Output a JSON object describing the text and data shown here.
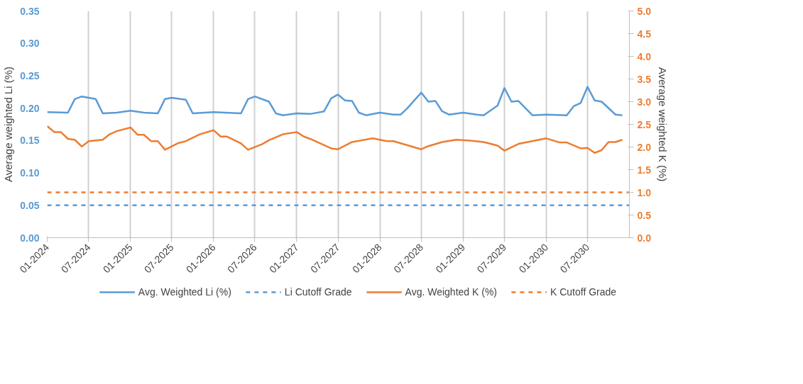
{
  "chart_data": {
    "type": "line",
    "ylabel": "Average weighted Li (%)",
    "y2label": "Average weighted K (%)",
    "xlim": [
      "2024-01",
      "2031-01"
    ],
    "xticks": [
      {
        "value": "2024-01",
        "label": "01-2024"
      },
      {
        "value": "2024-07",
        "label": "07-2024"
      },
      {
        "value": "2025-01",
        "label": "01-2025"
      },
      {
        "value": "2025-07",
        "label": "07-2025"
      },
      {
        "value": "2026-01",
        "label": "01-2026"
      },
      {
        "value": "2026-07",
        "label": "07-2026"
      },
      {
        "value": "2027-01",
        "label": "01-2027"
      },
      {
        "value": "2027-07",
        "label": "07-2027"
      },
      {
        "value": "2028-01",
        "label": "01-2028"
      },
      {
        "value": "2028-07",
        "label": "07-2028"
      },
      {
        "value": "2029-01",
        "label": "01-2029"
      },
      {
        "value": "2029-07",
        "label": "07-2029"
      },
      {
        "value": "2030-01",
        "label": "01-2030"
      },
      {
        "value": "2030-07",
        "label": "07-2030"
      }
    ],
    "ylim": [
      0,
      0.35
    ],
    "yticks": [
      {
        "value": 0,
        "label": "0.00"
      },
      {
        "value": 0.05,
        "label": "0.05"
      },
      {
        "value": 0.1,
        "label": "0.10"
      },
      {
        "value": 0.15,
        "label": "0.15"
      },
      {
        "value": 0.2,
        "label": "0.20"
      },
      {
        "value": 0.25,
        "label": "0.25"
      },
      {
        "value": 0.3,
        "label": "0.30"
      },
      {
        "value": 0.35,
        "label": "0.35"
      }
    ],
    "y2lim": [
      0,
      5
    ],
    "y2ticks": [
      {
        "value": 0,
        "label": "0.0"
      },
      {
        "value": 0.5,
        "label": "0.5"
      },
      {
        "value": 1,
        "label": "1.0"
      },
      {
        "value": 1.5,
        "label": "1.5"
      },
      {
        "value": 2,
        "label": "2.0"
      },
      {
        "value": 2.5,
        "label": "2.5"
      },
      {
        "value": 3,
        "label": "3.0"
      },
      {
        "value": 3.5,
        "label": "3.5"
      },
      {
        "value": 4,
        "label": "4.0"
      },
      {
        "value": 4.5,
        "label": "4.5"
      },
      {
        "value": 5,
        "label": "5.0"
      }
    ],
    "grid": "x",
    "legend": "bottom",
    "line_style": "solid",
    "series": [
      {
        "name": "Avg. Weighted Li (%)",
        "color": "#5b9bd5",
        "x": [
          "2024-01",
          "2024-04",
          "2024-05",
          "2024-06",
          "2024-08",
          "2024-09",
          "2024-11",
          "2025-01",
          "2025-03",
          "2025-05",
          "2025-06",
          "2025-07",
          "2025-09",
          "2025-10",
          "2026-01",
          "2026-05",
          "2026-06",
          "2026-07",
          "2026-09",
          "2026-10",
          "2026-11",
          "2027-01",
          "2027-03",
          "2027-05",
          "2027-06",
          "2027-07",
          "2027-08",
          "2027-09",
          "2027-10",
          "2027-11",
          "2028-01",
          "2028-03",
          "2028-04",
          "2028-05",
          "2028-07",
          "2028-08",
          "2028-09",
          "2028-10",
          "2028-11",
          "2029-01",
          "2029-03",
          "2029-04",
          "2029-06",
          "2029-07",
          "2029-08",
          "2029-09",
          "2029-11",
          "2030-01",
          "2030-04",
          "2030-05",
          "2030-06",
          "2030-07",
          "2030-08",
          "2030-09",
          "2030-11",
          "2030-12"
        ],
        "values": [
          0.194,
          0.193,
          0.214,
          0.218,
          0.214,
          0.192,
          0.193,
          0.196,
          0.193,
          0.192,
          0.214,
          0.216,
          0.213,
          0.192,
          0.194,
          0.192,
          0.214,
          0.218,
          0.21,
          0.192,
          0.189,
          0.192,
          0.191,
          0.195,
          0.215,
          0.221,
          0.212,
          0.211,
          0.193,
          0.189,
          0.193,
          0.19,
          0.19,
          0.2,
          0.224,
          0.21,
          0.211,
          0.195,
          0.19,
          0.193,
          0.19,
          0.189,
          0.204,
          0.231,
          0.21,
          0.211,
          0.189,
          0.19,
          0.189,
          0.203,
          0.208,
          0.233,
          0.212,
          0.21,
          0.19,
          0.189
        ]
      },
      {
        "name": "Avg. Weighted K (%)",
        "color": "#ed7d31",
        "axis": "y2",
        "x": [
          "2024-01",
          "2024-02",
          "2024-03",
          "2024-04",
          "2024-05",
          "2024-06",
          "2024-07",
          "2024-09",
          "2024-10",
          "2024-11",
          "2025-01",
          "2025-02",
          "2025-03",
          "2025-04",
          "2025-05",
          "2025-06",
          "2025-08",
          "2025-09",
          "2025-11",
          "2026-01",
          "2026-02",
          "2026-03",
          "2026-05",
          "2026-06",
          "2026-08",
          "2026-09",
          "2026-11",
          "2027-01",
          "2027-02",
          "2027-03",
          "2027-06",
          "2027-07",
          "2027-09",
          "2027-12",
          "2028-02",
          "2028-03",
          "2028-07",
          "2028-08",
          "2028-10",
          "2028-12",
          "2029-02",
          "2029-04",
          "2029-06",
          "2029-07",
          "2029-09",
          "2029-12",
          "2030-01",
          "2030-03",
          "2030-04",
          "2030-06",
          "2030-07",
          "2030-08",
          "2030-09",
          "2030-10",
          "2030-11",
          "2030-12"
        ],
        "values": [
          2.46,
          2.33,
          2.33,
          2.18,
          2.16,
          2.01,
          2.13,
          2.16,
          2.28,
          2.35,
          2.43,
          2.27,
          2.27,
          2.13,
          2.13,
          1.94,
          2.09,
          2.13,
          2.28,
          2.37,
          2.23,
          2.23,
          2.08,
          1.94,
          2.06,
          2.15,
          2.28,
          2.33,
          2.23,
          2.18,
          1.97,
          1.95,
          2.11,
          2.19,
          2.13,
          2.13,
          1.95,
          2.02,
          2.11,
          2.16,
          2.14,
          2.11,
          2.03,
          1.92,
          2.07,
          2.16,
          2.19,
          2.1,
          2.1,
          1.97,
          1.98,
          1.87,
          1.93,
          2.11,
          2.11,
          2.16
        ]
      }
    ],
    "ref_lines": [
      {
        "axis": "y",
        "value": 0.05,
        "label": "Li Cutoff Grade",
        "color": "#5b9bd5",
        "line_style": "dashed"
      },
      {
        "axis": "y2",
        "value": 1.0,
        "label": "K Cutoff Grade",
        "color": "#ed7d31",
        "line_style": "dashed"
      }
    ]
  }
}
